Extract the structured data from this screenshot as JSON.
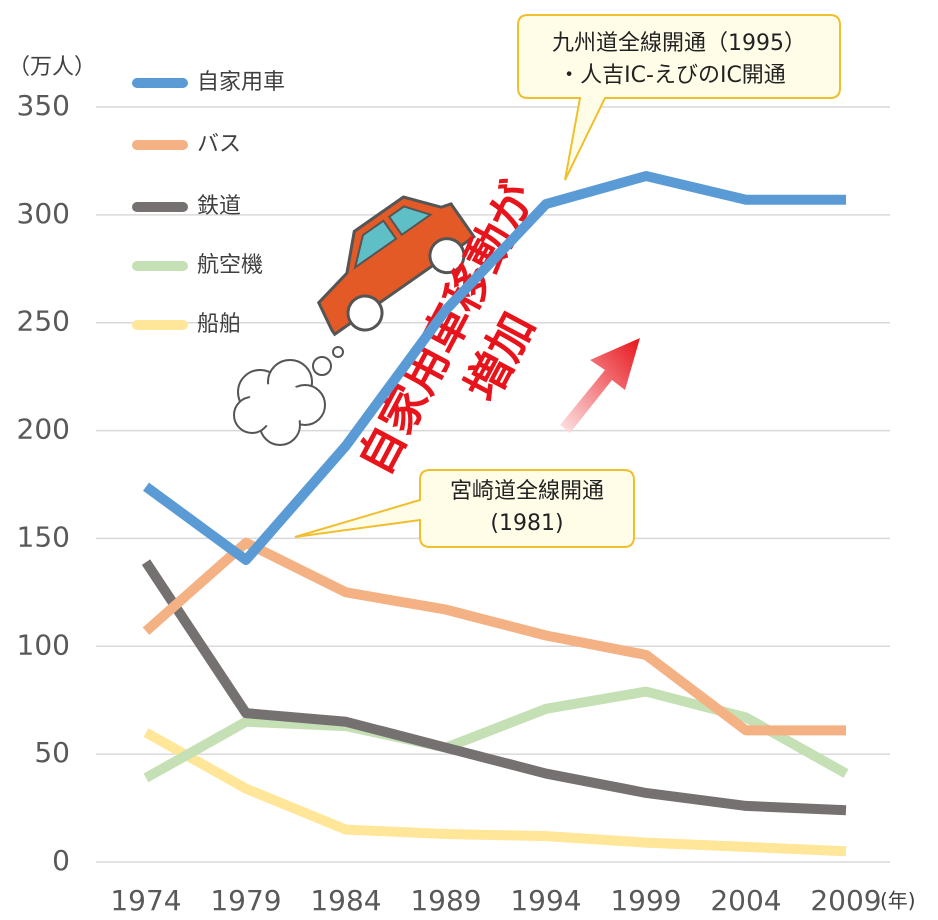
{
  "chart_data": {
    "type": "line",
    "y_unit": "（万人）",
    "x_unit": "(年)",
    "categories": [
      "1974",
      "1979",
      "1984",
      "1989",
      "1994",
      "1999",
      "2004",
      "2009"
    ],
    "series": [
      {
        "name": "自家用車",
        "color": "#5b9bd5",
        "values": [
          174,
          140,
          193,
          256,
          305,
          318,
          307,
          307
        ]
      },
      {
        "name": "バス",
        "color": "#f4b183",
        "values": [
          107,
          148,
          125,
          117,
          105,
          96,
          61,
          61
        ]
      },
      {
        "name": "鉄道",
        "color": "#767171",
        "values": [
          139,
          69,
          65,
          53,
          41,
          32,
          26,
          24
        ]
      },
      {
        "name": "航空機",
        "color": "#c5e0b4",
        "values": [
          39,
          65,
          63,
          53,
          71,
          79,
          67,
          41
        ]
      },
      {
        "name": "船舶",
        "color": "#ffe699",
        "values": [
          60,
          34,
          15,
          13,
          12,
          9,
          7,
          5
        ]
      }
    ],
    "ylim": [
      0,
      350
    ],
    "yticks": [
      0,
      50,
      100,
      150,
      200,
      250,
      300,
      350
    ],
    "grid": true,
    "legend": "top-left",
    "annotations": [
      {
        "lines": [
          "九州道全線開通（1995）",
          "・人吉IC-えびのIC開通"
        ]
      },
      {
        "lines": [
          "宮崎道全線開通",
          "(1981)"
        ]
      }
    ],
    "headline": [
      "自家用車移動が",
      "増加"
    ]
  }
}
